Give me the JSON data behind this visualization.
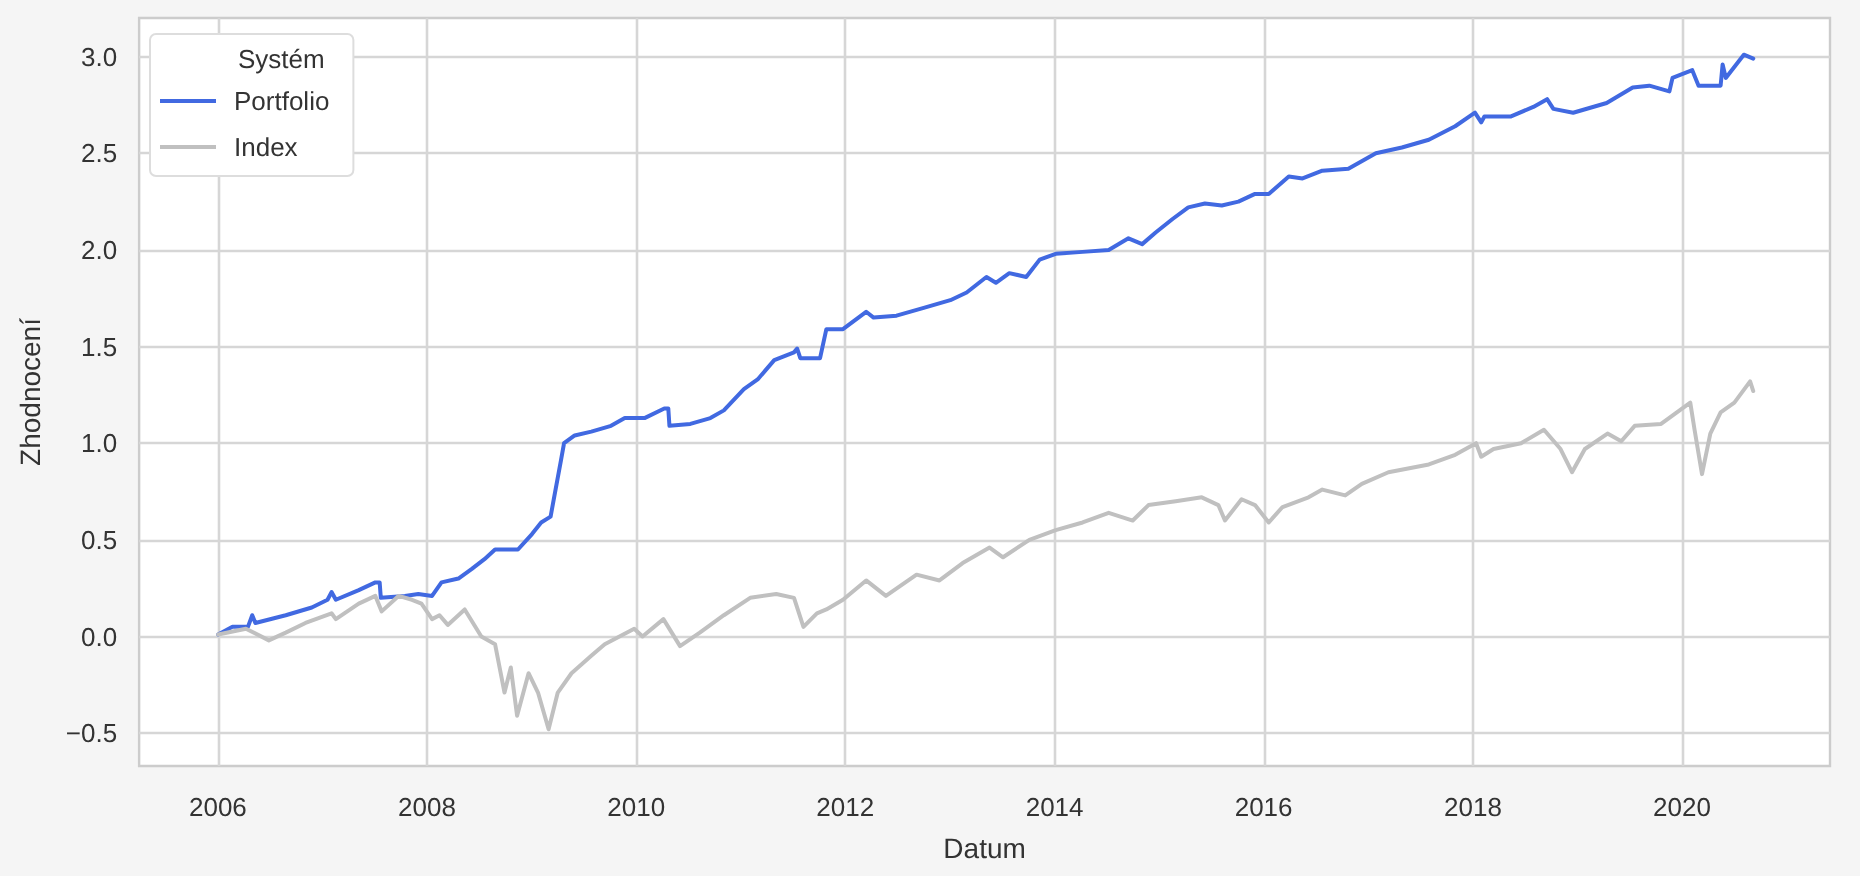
{
  "chart_data": {
    "type": "line",
    "xlabel": "Datum",
    "ylabel": "Zhodnocení",
    "legend_title": "Systém",
    "legend": "top left",
    "grid": true,
    "xlim": [
      "2005-04-01",
      "2021-06-01"
    ],
    "xticks": [
      "2006",
      "2008",
      "2010",
      "2012",
      "2014",
      "2016",
      "2018",
      "2020"
    ],
    "ylim": [
      -0.67,
      3.2
    ],
    "yticks": [
      {
        "value": -0.5,
        "label": "−0.5"
      },
      {
        "value": 0,
        "label": "0.0"
      },
      {
        "value": 0.5,
        "label": "0.5"
      },
      {
        "value": 1,
        "label": "1.0"
      },
      {
        "value": 1.5,
        "label": "1.5"
      },
      {
        "value": 2,
        "label": "2.0"
      },
      {
        "value": 2.5,
        "label": "2.5"
      },
      {
        "value": 3,
        "label": "3.0"
      }
    ],
    "series": [
      {
        "name": "Portfolio",
        "color": "#4169e1",
        "x": [
          "2006-01-02",
          "2006-02-21",
          "2006-04-16",
          "2006-05-01",
          "2006-05-12",
          "2006-08-26",
          "2006-11-25",
          "2007-01-19",
          "2007-02-02",
          "2007-02-17",
          "2007-05-08",
          "2007-07-05",
          "2007-07-20",
          "2007-07-24",
          "2007-10-16",
          "2007-12-02",
          "2008-01-19",
          "2008-02-21",
          "2008-04-20",
          "2008-06-06",
          "2008-07-20",
          "2008-08-26",
          "2008-11-14",
          "2009-01-02",
          "2009-02-03",
          "2009-03-08",
          "2009-03-19",
          "2009-04-13",
          "2009-04-24",
          "2009-05-31",
          "2009-07-28",
          "2009-10-05",
          "2009-11-22",
          "2010-01-30",
          "2010-04-09",
          "2010-04-23",
          "2010-04-27",
          "2010-07-09",
          "2010-09-17",
          "2010-11-03",
          "2011-01-12",
          "2011-03-01",
          "2011-04-28",
          "2011-07-06",
          "2011-07-17",
          "2011-07-28",
          "2011-10-05",
          "2011-10-27",
          "2011-12-24",
          "2012-03-14",
          "2012-04-09",
          "2012-06-28",
          "2012-10-01",
          "2013-01-02",
          "2013-02-28",
          "2013-05-08",
          "2013-06-10",
          "2013-07-27",
          "2013-09-24",
          "2013-11-10",
          "2014-01-05",
          "2014-04-09",
          "2014-07-09",
          "2014-09-16",
          "2014-11-03",
          "2014-12-20",
          "2015-02-17",
          "2015-04-13",
          "2015-06-10",
          "2015-08-08",
          "2015-10-05",
          "2015-12-02",
          "2016-01-19",
          "2016-03-29",
          "2016-05-16",
          "2016-07-24",
          "2016-10-23",
          "2017-01-27",
          "2017-04-28",
          "2017-07-31",
          "2017-10-31",
          "2018-01-08",
          "2018-01-30",
          "2018-02-10",
          "2018-05-12",
          "2018-07-31",
          "2018-09-17",
          "2018-10-09",
          "2018-12-17",
          "2019-04-13",
          "2019-07-13",
          "2019-09-09",
          "2019-11-18",
          "2019-11-29",
          "2020-02-06",
          "2020-02-28",
          "2020-05-15",
          "2020-05-22",
          "2020-06-02",
          "2020-08-04",
          "2020-09-06"
        ],
        "values": [
          0.01,
          0.05,
          0.05,
          0.11,
          0.07,
          0.11,
          0.15,
          0.19,
          0.23,
          0.19,
          0.24,
          0.28,
          0.28,
          0.2,
          0.21,
          0.22,
          0.21,
          0.28,
          0.3,
          0.35,
          0.4,
          0.45,
          0.45,
          0.53,
          0.59,
          0.62,
          0.71,
          0.91,
          1.0,
          1.04,
          1.06,
          1.09,
          1.13,
          1.13,
          1.18,
          1.18,
          1.09,
          1.1,
          1.13,
          1.17,
          1.28,
          1.33,
          1.43,
          1.47,
          1.49,
          1.44,
          1.44,
          1.59,
          1.59,
          1.68,
          1.65,
          1.66,
          1.7,
          1.74,
          1.78,
          1.86,
          1.83,
          1.88,
          1.86,
          1.95,
          1.98,
          1.99,
          2.0,
          2.06,
          2.03,
          2.09,
          2.16,
          2.22,
          2.24,
          2.23,
          2.25,
          2.29,
          2.29,
          2.38,
          2.37,
          2.41,
          2.42,
          2.5,
          2.53,
          2.57,
          2.64,
          2.71,
          2.66,
          2.69,
          2.69,
          2.74,
          2.78,
          2.73,
          2.71,
          2.76,
          2.84,
          2.85,
          2.82,
          2.89,
          2.93,
          2.85,
          2.85,
          2.96,
          2.89,
          3.01,
          2.99
        ]
      },
      {
        "name": "Index",
        "color": "#c0c0c0",
        "x": [
          "2006-01-02",
          "2006-04-09",
          "2006-06-28",
          "2006-08-26",
          "2006-11-03",
          "2007-02-02",
          "2007-02-17",
          "2007-05-08",
          "2007-07-05",
          "2007-07-27",
          "2007-09-24",
          "2007-11-10",
          "2007-12-13",
          "2008-01-19",
          "2008-02-14",
          "2008-03-14",
          "2008-05-12",
          "2008-07-09",
          "2008-08-26",
          "2008-09-28",
          "2008-10-20",
          "2008-11-11",
          "2008-12-21",
          "2009-01-23",
          "2009-03-01",
          "2009-04-02",
          "2009-05-20",
          "2009-07-28",
          "2009-09-13",
          "2009-12-25",
          "2010-01-23",
          "2010-04-06",
          "2010-06-03",
          "2010-08-11",
          "2010-11-03",
          "2011-02-03",
          "2011-05-05",
          "2011-07-06",
          "2011-08-08",
          "2011-09-24",
          "2011-10-27",
          "2011-12-24",
          "2012-03-14",
          "2012-05-22",
          "2012-09-06",
          "2012-11-25",
          "2013-02-14",
          "2013-05-19",
          "2013-07-05",
          "2013-10-05",
          "2014-01-05",
          "2014-04-09",
          "2014-07-09",
          "2014-10-01",
          "2014-11-25",
          "2015-02-28",
          "2015-05-30",
          "2015-07-27",
          "2015-08-19",
          "2015-10-16",
          "2015-12-02",
          "2016-01-19",
          "2016-03-07",
          "2016-06-06",
          "2016-07-24",
          "2016-10-12",
          "2016-12-09",
          "2017-03-12",
          "2017-07-31",
          "2017-10-31",
          "2018-01-12",
          "2018-01-30",
          "2018-03-14",
          "2018-06-18",
          "2018-09-06",
          "2018-11-03",
          "2018-12-13",
          "2019-01-27",
          "2019-04-16",
          "2019-06-03",
          "2019-07-20",
          "2019-10-20",
          "2020-01-30",
          "2020-02-14",
          "2020-03-11",
          "2020-04-09",
          "2020-05-15",
          "2020-07-02",
          "2020-08-26",
          "2020-09-06"
        ],
        "values": [
          0.01,
          0.04,
          -0.02,
          0.02,
          0.07,
          0.12,
          0.09,
          0.17,
          0.21,
          0.13,
          0.21,
          0.19,
          0.17,
          0.09,
          0.11,
          0.06,
          0.14,
          0.0,
          -0.04,
          -0.29,
          -0.16,
          -0.41,
          -0.19,
          -0.29,
          -0.48,
          -0.29,
          -0.19,
          -0.1,
          -0.04,
          0.04,
          0.0,
          0.09,
          -0.05,
          0.02,
          0.11,
          0.2,
          0.22,
          0.2,
          0.05,
          0.12,
          0.14,
          0.19,
          0.29,
          0.21,
          0.32,
          0.29,
          0.38,
          0.46,
          0.41,
          0.5,
          0.55,
          0.59,
          0.64,
          0.6,
          0.68,
          0.7,
          0.72,
          0.68,
          0.6,
          0.71,
          0.68,
          0.59,
          0.67,
          0.72,
          0.76,
          0.73,
          0.79,
          0.85,
          0.89,
          0.94,
          1.0,
          0.93,
          0.97,
          1.0,
          1.07,
          0.97,
          0.85,
          0.97,
          1.05,
          1.01,
          1.09,
          1.1,
          1.21,
          1.07,
          0.84,
          1.05,
          1.16,
          1.21,
          1.32,
          1.27
        ]
      }
    ]
  }
}
